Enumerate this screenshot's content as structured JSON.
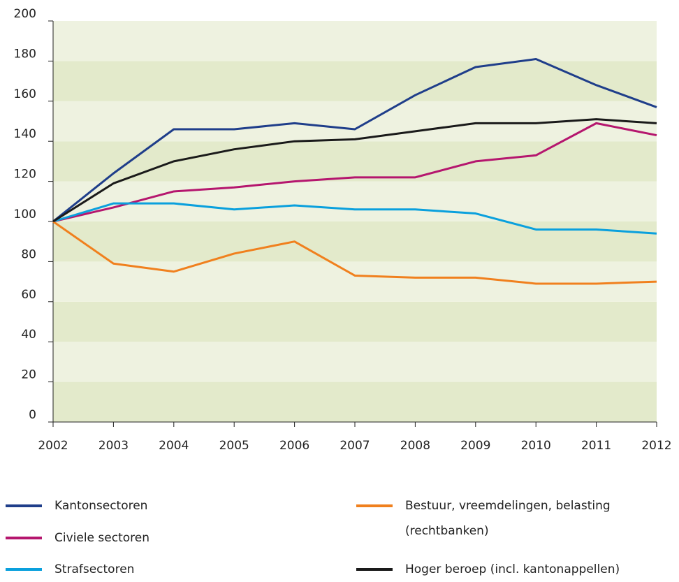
{
  "chart_data": {
    "type": "line",
    "x": [
      2002,
      2003,
      2004,
      2005,
      2006,
      2007,
      2008,
      2009,
      2010,
      2011,
      2012
    ],
    "xlim": [
      2002,
      2012
    ],
    "xticks": [
      2002,
      2003,
      2004,
      2005,
      2006,
      2007,
      2008,
      2009,
      2010,
      2011,
      2012
    ],
    "ylim": [
      0,
      200
    ],
    "yticks": [
      0,
      20,
      40,
      60,
      80,
      100,
      120,
      140,
      160,
      180,
      200
    ],
    "band_colors": [
      "#e3eacb",
      "#eef2e0"
    ],
    "series": [
      {
        "name": "Kantonsectoren",
        "color": "#1f3e8a",
        "values": [
          100,
          124,
          146,
          146,
          149,
          146,
          163,
          177,
          181,
          168,
          157
        ]
      },
      {
        "name": "Civiele sectoren",
        "color": "#b5166e",
        "values": [
          100,
          107,
          115,
          117,
          120,
          122,
          122,
          130,
          133,
          149,
          143
        ]
      },
      {
        "name": "Strafsectoren",
        "color": "#0aa0dd",
        "values": [
          100,
          109,
          109,
          106,
          108,
          106,
          106,
          104,
          96,
          96,
          94
        ]
      },
      {
        "name": "Bestuur, vreemdelingen, belasting (rechtbanken)",
        "color": "#f0801e",
        "values": [
          100,
          79,
          75,
          84,
          90,
          73,
          72,
          72,
          69,
          69,
          70
        ]
      },
      {
        "name": "Hoger beroep (incl. kantonappellen)",
        "color": "#1a1a1a",
        "values": [
          100,
          119,
          130,
          136,
          140,
          141,
          145,
          149,
          149,
          151,
          149
        ]
      }
    ]
  }
}
